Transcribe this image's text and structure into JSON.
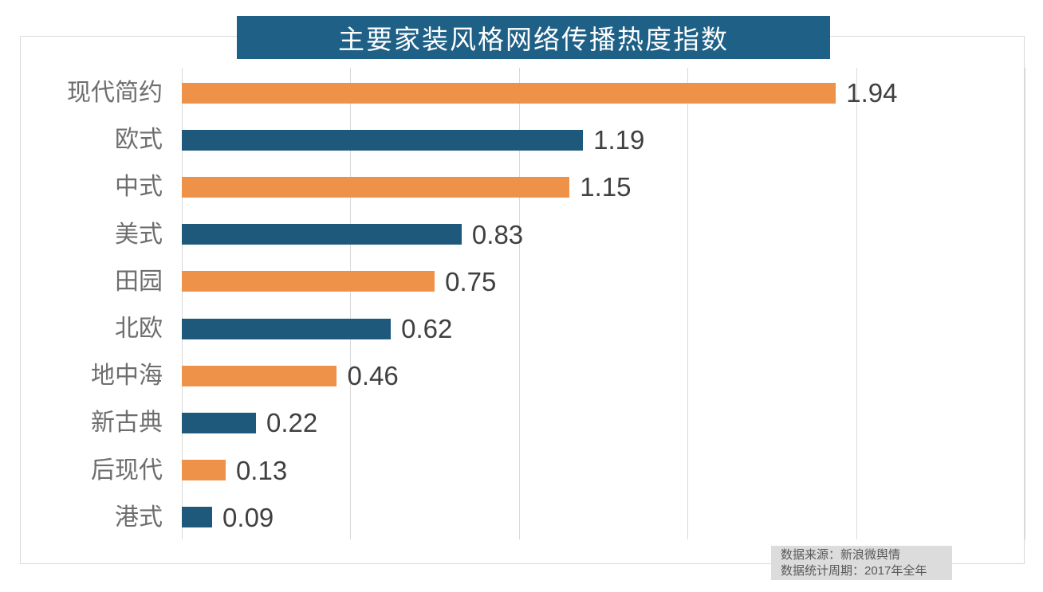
{
  "title": "主要家装风格网络传播热度指数",
  "chart_data": {
    "type": "bar",
    "orientation": "horizontal",
    "title": "主要家装风格网络传播热度指数",
    "categories": [
      "现代简约",
      "欧式",
      "中式",
      "美式",
      "田园",
      "北欧",
      "地中海",
      "新古典",
      "后现代",
      "港式"
    ],
    "values": [
      1.94,
      1.19,
      1.15,
      0.83,
      0.75,
      0.62,
      0.46,
      0.22,
      0.13,
      0.09
    ],
    "value_labels": [
      "1.94",
      "1.19",
      "1.15",
      "0.83",
      "0.75",
      "0.62",
      "0.46",
      "0.22",
      "0.13",
      "0.09"
    ],
    "xlim": [
      0,
      2.5
    ],
    "gridline_step": 0.5,
    "grid": true,
    "legend": "none",
    "bar_colors": [
      "#EF9249",
      "#1E587A"
    ],
    "data_label_position": "end"
  },
  "colors": {
    "title_bg": "#1F6087",
    "title_text": "#FFFFFF",
    "orange_bar": "#EF9249",
    "blue_bar": "#1E587A",
    "gridline": "#D9D9D9",
    "frame_border": "#D9D9D9",
    "category_label": "#6E6E6E",
    "value_label": "#404040",
    "footer_bg": "#DCDCDC",
    "footer_text": "#595959"
  },
  "footer": {
    "source": "数据来源：新浪微舆情",
    "period": "数据统计周期：2017年全年"
  }
}
